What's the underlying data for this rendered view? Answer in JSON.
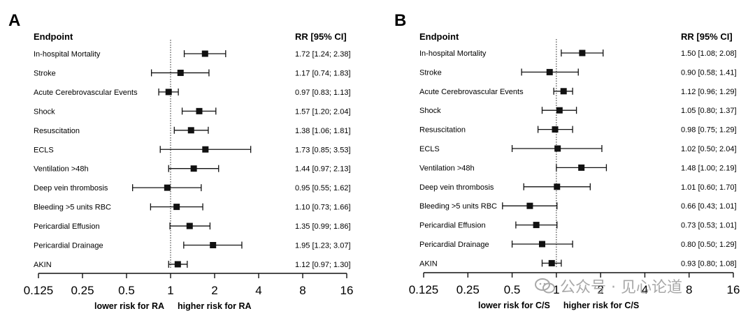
{
  "chart_data": [
    {
      "type": "forest",
      "panel_label": "A",
      "header_left": "Endpoint",
      "header_right": "RR  [95% CI]",
      "xscale": "log2",
      "xlim": [
        0.125,
        16
      ],
      "xticks": [
        "0.125",
        "0.25",
        "0.5",
        "1",
        "2",
        "4",
        "8",
        "16"
      ],
      "tick_values": [
        0.125,
        0.25,
        0.5,
        1,
        2,
        4,
        8,
        16
      ],
      "reference_line": 1,
      "label_left": "lower risk for RA",
      "label_right": "higher risk for RA",
      "rows": [
        {
          "endpoint": "In-hospital Mortality",
          "rr": 1.72,
          "lo": 1.24,
          "hi": 2.38,
          "text": "1.72 [1.24; 2.38]"
        },
        {
          "endpoint": "Stroke",
          "rr": 1.17,
          "lo": 0.74,
          "hi": 1.83,
          "text": "1.17 [0.74; 1.83]"
        },
        {
          "endpoint": "Acute Cerebrovascular Events",
          "rr": 0.97,
          "lo": 0.83,
          "hi": 1.13,
          "text": "0.97 [0.83; 1.13]"
        },
        {
          "endpoint": "Shock",
          "rr": 1.57,
          "lo": 1.2,
          "hi": 2.04,
          "text": "1.57 [1.20; 2.04]"
        },
        {
          "endpoint": "Resuscitation",
          "rr": 1.38,
          "lo": 1.06,
          "hi": 1.81,
          "text": "1.38 [1.06; 1.81]"
        },
        {
          "endpoint": "ECLS",
          "rr": 1.73,
          "lo": 0.85,
          "hi": 3.53,
          "text": "1.73 [0.85; 3.53]"
        },
        {
          "endpoint": "Ventilation >48h",
          "rr": 1.44,
          "lo": 0.97,
          "hi": 2.13,
          "text": "1.44 [0.97; 2.13]"
        },
        {
          "endpoint": "Deep vein thrombosis",
          "rr": 0.95,
          "lo": 0.55,
          "hi": 1.62,
          "text": "0.95 [0.55; 1.62]"
        },
        {
          "endpoint": "Bleeding >5 units RBC",
          "rr": 1.1,
          "lo": 0.73,
          "hi": 1.66,
          "text": "1.10 [0.73; 1.66]"
        },
        {
          "endpoint": "Pericardial Effusion",
          "rr": 1.35,
          "lo": 0.99,
          "hi": 1.86,
          "text": "1.35 [0.99; 1.86]"
        },
        {
          "endpoint": "Pericardial Drainage",
          "rr": 1.95,
          "lo": 1.23,
          "hi": 3.07,
          "text": "1.95 [1.23; 3.07]"
        },
        {
          "endpoint": "AKIN",
          "rr": 1.12,
          "lo": 0.97,
          "hi": 1.3,
          "text": "1.12 [0.97; 1.30]"
        }
      ]
    },
    {
      "type": "forest",
      "panel_label": "B",
      "header_left": "Endpoint",
      "header_right": "RR  [95% CI]",
      "xscale": "log2",
      "xlim": [
        0.125,
        16
      ],
      "xticks": [
        "0.125",
        "0.25",
        "0.5",
        "1",
        "2",
        "4",
        "8",
        "16"
      ],
      "tick_values": [
        0.125,
        0.25,
        0.5,
        1,
        2,
        4,
        8,
        16
      ],
      "reference_line": 1,
      "label_left": "lower risk for C/S",
      "label_right": "higher risk for C/S",
      "rows": [
        {
          "endpoint": "In-hospital Mortality",
          "rr": 1.5,
          "lo": 1.08,
          "hi": 2.08,
          "text": "1.50 [1.08; 2.08]"
        },
        {
          "endpoint": "Stroke",
          "rr": 0.9,
          "lo": 0.58,
          "hi": 1.41,
          "text": "0.90 [0.58; 1.41]"
        },
        {
          "endpoint": "Acute Cerebrovascular Events",
          "rr": 1.12,
          "lo": 0.96,
          "hi": 1.29,
          "text": "1.12 [0.96; 1.29]"
        },
        {
          "endpoint": "Shock",
          "rr": 1.05,
          "lo": 0.8,
          "hi": 1.37,
          "text": "1.05 [0.80; 1.37]"
        },
        {
          "endpoint": "Resuscitation",
          "rr": 0.98,
          "lo": 0.75,
          "hi": 1.29,
          "text": "0.98 [0.75; 1.29]"
        },
        {
          "endpoint": "ECLS",
          "rr": 1.02,
          "lo": 0.5,
          "hi": 2.04,
          "text": "1.02 [0.50; 2.04]"
        },
        {
          "endpoint": "Ventilation >48h",
          "rr": 1.48,
          "lo": 1.0,
          "hi": 2.19,
          "text": "1.48 [1.00; 2.19]"
        },
        {
          "endpoint": "Deep vein thrombosis",
          "rr": 1.01,
          "lo": 0.6,
          "hi": 1.7,
          "text": "1.01 [0.60; 1.70]"
        },
        {
          "endpoint": "Bleeding >5 units RBC",
          "rr": 0.66,
          "lo": 0.43,
          "hi": 1.01,
          "text": "0.66 [0.43; 1.01]"
        },
        {
          "endpoint": "Pericardial Effusion",
          "rr": 0.73,
          "lo": 0.53,
          "hi": 1.01,
          "text": "0.73 [0.53; 1.01]"
        },
        {
          "endpoint": "Pericardial Drainage",
          "rr": 0.8,
          "lo": 0.5,
          "hi": 1.29,
          "text": "0.80 [0.50; 1.29]"
        },
        {
          "endpoint": "AKIN",
          "rr": 0.93,
          "lo": 0.8,
          "hi": 1.08,
          "text": "0.93 [0.80; 1.08]"
        }
      ]
    }
  ],
  "watermark": {
    "text": "公众号 · 见心论道",
    "color": "#9a9a9a"
  }
}
